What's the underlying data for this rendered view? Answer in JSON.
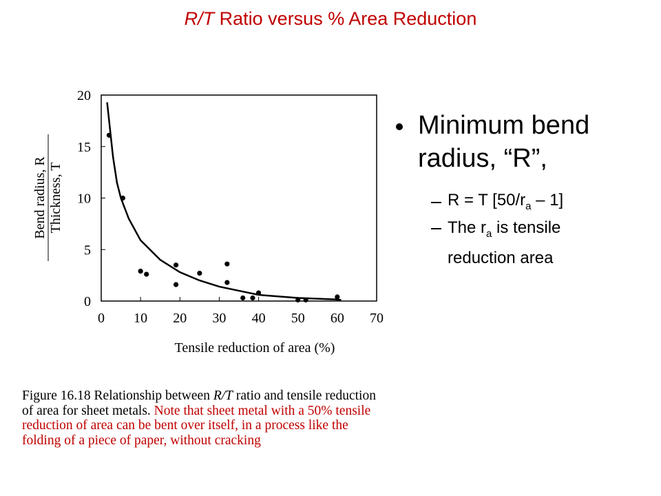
{
  "title": {
    "italic": "R/T",
    "rest": " Ratio versus % Area Reduction"
  },
  "bullet": {
    "text": "Minimum bend radius, “R”,",
    "subs": [
      {
        "before": "R = T [50/r",
        "sub": "a",
        "after": " – 1]"
      },
      {
        "before": "The r",
        "sub": "a",
        "after": " is tensile reduction area"
      }
    ]
  },
  "caption": {
    "lead": "Figure 16.18  Relationship between ",
    "italic": "R/T",
    "mid": " ratio and tensile reduction of area for sheet metals.",
    "note": "Note that sheet metal with a 50% tensile reduction of area can be bent over itself, in a process like the folding of a piece of paper, without cracking"
  },
  "chart_data": {
    "type": "scatter",
    "xlabel": "Tensile   reduction   of   area   (%)",
    "ylabel": {
      "numerator": "Bend   radius,  R",
      "denominator": "Thickness,   T"
    },
    "xlim": [
      0,
      70
    ],
    "xticks": [
      0,
      10,
      20,
      30,
      40,
      50,
      60,
      70
    ],
    "ylim": [
      0,
      20
    ],
    "yticks": [
      0,
      5,
      10,
      15,
      20
    ],
    "color": "#000000",
    "series": [
      {
        "x": [
          2,
          5.5,
          10,
          11.5,
          19,
          19,
          25,
          32,
          32,
          36,
          38.5,
          40,
          50,
          52,
          60
        ],
        "values": [
          16.1,
          10,
          2.9,
          2.6,
          3.5,
          1.6,
          2.7,
          3.6,
          1.8,
          0.3,
          0.3,
          0.8,
          0.1,
          0.1,
          0.4
        ]
      },
      {
        "type": "line",
        "x": [
          1.5,
          3,
          4,
          5,
          7,
          10,
          15,
          20,
          25,
          30,
          35,
          40,
          50,
          60,
          61
        ],
        "values": [
          19.3,
          14,
          11.5,
          10,
          8,
          5.9,
          4,
          2.8,
          2,
          1.4,
          1,
          0.6,
          0.3,
          0.15,
          0.1
        ]
      }
    ]
  }
}
